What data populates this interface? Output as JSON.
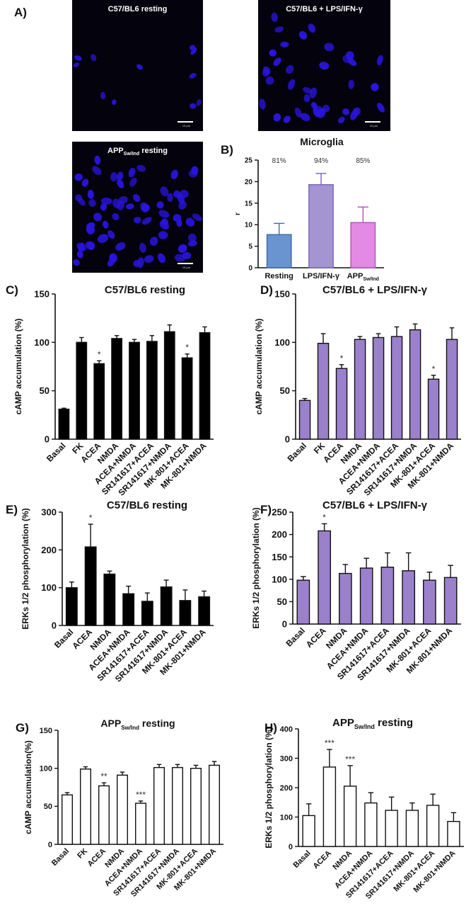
{
  "panel_labels": {
    "A": "A)",
    "B": "B)",
    "C": "C)",
    "D": "D)",
    "E": "E)",
    "F": "F)",
    "G": "G)",
    "H": "H)"
  },
  "micrographs": [
    {
      "title": "C57/BL6 resting",
      "sub": "",
      "suffix": "",
      "scale": "10 µm"
    },
    {
      "title": "C57/BL6 + LPS/IFN-γ",
      "sub": "",
      "suffix": "",
      "scale": "10 µm"
    },
    {
      "title": "APP",
      "sub": "Sw/Ind",
      "suffix": " resting",
      "scale": "10 µm"
    }
  ],
  "colors": {
    "purple": "#9b80cc",
    "lavender": "#a594d2",
    "blue": "#6a94cf",
    "pink": "#e28ae4",
    "black": "#000000",
    "white": "#ffffff",
    "nucleus": "#2a14e0"
  },
  "chart_data": [
    {
      "id": "B",
      "type": "bar",
      "title": "Microglia",
      "ylabel": "r",
      "ylim": [
        0,
        25
      ],
      "yticks": [
        0,
        5,
        10,
        15,
        20,
        25
      ],
      "categories": [
        "Resting",
        "LPS/IFN-γ",
        "APP"
      ],
      "category_sub": [
        "",
        "",
        "Sw/Ind"
      ],
      "values": [
        7.7,
        19.3,
        10.5
      ],
      "errors": [
        2.6,
        2.6,
        3.6
      ],
      "annotations": [
        "81%",
        "94%",
        "85%"
      ],
      "fills": [
        "#6a94cf",
        "#a594d2",
        "#e28ae4"
      ],
      "strokes": [
        "#3e6aaa",
        "#7d64b6",
        "#b34fb7"
      ]
    },
    {
      "id": "C",
      "type": "bar",
      "title": "C57/BL6 resting",
      "title_sub": "",
      "title_suffix": "",
      "ylabel": "cAMP accumulation (%)",
      "ylim": [
        0,
        150
      ],
      "yticks": [
        0,
        50,
        100,
        150
      ],
      "categories": [
        "Basal",
        "FK",
        "ACEA",
        "NMDA",
        "ACEA+NMDA",
        "SR141617+ACEA",
        "SR141617+NMDA",
        "MK-801+ACEA",
        "MK-801+NMDA"
      ],
      "values": [
        31,
        100,
        78,
        104,
        100,
        101,
        111,
        84,
        110
      ],
      "errors": [
        1,
        5,
        3,
        3,
        3,
        6,
        7,
        4,
        6
      ],
      "annotations": [
        "",
        "",
        "*",
        "",
        "",
        "",
        "",
        "*",
        ""
      ],
      "fill": "#000000"
    },
    {
      "id": "D",
      "type": "bar",
      "title": "C57/BL6 + LPS/IFN-γ",
      "title_sub": "",
      "title_suffix": "",
      "ylabel": "cAMP accumulation (%)",
      "ylim": [
        0,
        150
      ],
      "yticks": [
        0,
        50,
        100,
        150
      ],
      "categories": [
        "Basal",
        "FK",
        "ACEA",
        "NMDA",
        "ACEA+NMDA",
        "SR141617+ACEA",
        "SR141617+NMDA",
        "MK-801+ACEA",
        "MK-801+NMDA"
      ],
      "values": [
        40,
        99,
        73,
        103,
        105,
        106,
        113,
        62,
        103
      ],
      "errors": [
        2,
        10,
        4,
        3,
        4,
        10,
        6,
        4,
        12
      ],
      "annotations": [
        "",
        "",
        "*",
        "",
        "",
        "",
        "",
        "*",
        ""
      ],
      "fill": "#9b80cc"
    },
    {
      "id": "E",
      "type": "bar",
      "title": "C57/BL6 resting",
      "title_sub": "",
      "title_suffix": "",
      "ylabel": "ERKs 1/2 phosphorylation (%)",
      "ylim": [
        0,
        300
      ],
      "yticks": [
        0,
        100,
        200,
        300
      ],
      "categories": [
        "Basal",
        "ACEA",
        "NMDA",
        "ACEA+NMDA",
        "SR141617+ACEA",
        "SR141617+NMDA",
        "MK-801+ACEA",
        "MK-801+NMDA"
      ],
      "values": [
        100,
        208,
        136,
        84,
        64,
        102,
        66,
        76
      ],
      "errors": [
        15,
        60,
        8,
        20,
        22,
        18,
        28,
        15
      ],
      "annotations": [
        "",
        "*",
        "",
        "",
        "",
        "",
        "",
        ""
      ],
      "fill": "#000000"
    },
    {
      "id": "F",
      "type": "bar",
      "title": "C57/BL6 + LPS/IFN-γ",
      "title_sub": "",
      "title_suffix": "",
      "ylabel": "ERKs 1/2 phosphorylation (%)",
      "ylim": [
        0,
        250
      ],
      "yticks": [
        0,
        50,
        100,
        150,
        200,
        250
      ],
      "categories": [
        "Basal",
        "ACEA",
        "NMDA",
        "ACEA+NMDA",
        "SR141617+ACEA",
        "SR141617+NMDA",
        "MK-801+ACEA",
        "MK-801+NMDA"
      ],
      "values": [
        98,
        208,
        113,
        125,
        127,
        119,
        98,
        104
      ],
      "errors": [
        8,
        16,
        20,
        22,
        32,
        40,
        18,
        27
      ],
      "annotations": [
        "",
        "*",
        "",
        "",
        "",
        "",
        "",
        ""
      ],
      "fill": "#9b80cc"
    },
    {
      "id": "G",
      "type": "bar",
      "title": "APP",
      "title_sub": "Sw/Ind",
      "title_suffix": " resting",
      "ylabel": "cAMP accumulation(%)",
      "ylim": [
        0,
        150
      ],
      "yticks": [
        0,
        50,
        100,
        150
      ],
      "categories": [
        "Basal",
        "FK",
        "ACEA",
        "NMDA",
        "ACEA+NMDA",
        "SR141617+ACEA",
        "SR141617+NMDA",
        "MK-801+ACEA",
        "MK-801+NMDA"
      ],
      "values": [
        65,
        99,
        77,
        91,
        54,
        101,
        101,
        100,
        104
      ],
      "errors": [
        3,
        3,
        4,
        4,
        3,
        4,
        4,
        4,
        5
      ],
      "annotations": [
        "",
        "",
        "**",
        "",
        "***",
        "",
        "",
        "",
        ""
      ],
      "fill": "#ffffff"
    },
    {
      "id": "H",
      "type": "bar",
      "title": "APP",
      "title_sub": "Sw/Ind",
      "title_suffix": " resting",
      "ylabel": "ERKs 1/2 phosphorylation (%)",
      "ylim": [
        0,
        400
      ],
      "yticks": [
        0,
        100,
        200,
        300,
        400
      ],
      "categories": [
        "Basal",
        "ACEA",
        "NMDA",
        "ACEA+NMDA",
        "SR141617+ACEA",
        "SR141617+NMDA",
        "MK-801+ACEA",
        "MK-801+NMDA"
      ],
      "values": [
        105,
        270,
        205,
        148,
        123,
        123,
        140,
        85
      ],
      "errors": [
        40,
        60,
        70,
        35,
        45,
        25,
        38,
        30
      ],
      "annotations": [
        "",
        "***",
        "***",
        "",
        "",
        "",
        "",
        ""
      ],
      "fill": "#ffffff"
    }
  ]
}
